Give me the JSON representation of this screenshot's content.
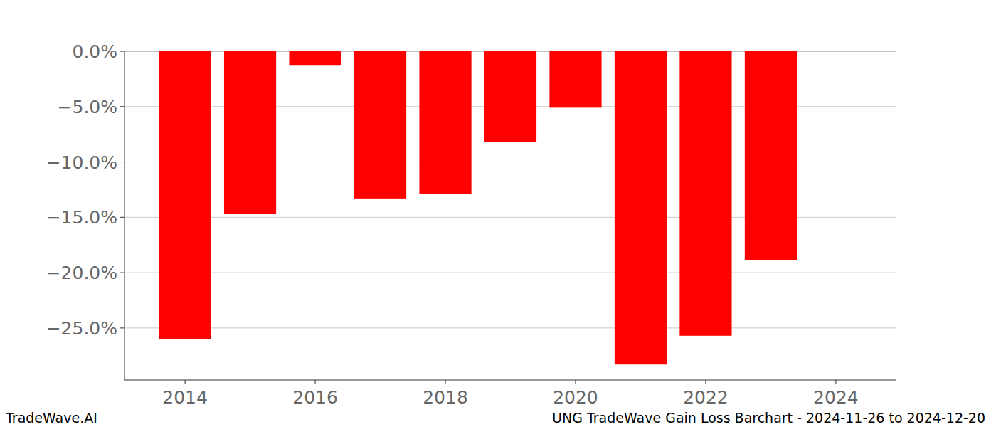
{
  "chart_data": {
    "type": "bar",
    "title": "UNG TradeWave Gain Loss Barchart - 2024-11-26 to 2024-12-20",
    "annotations": [
      "TradeWave.AI"
    ],
    "x": [
      2014,
      2015,
      2016,
      2017,
      2018,
      2019,
      2020,
      2021,
      2022,
      2023
    ],
    "values": [
      -26.0,
      -14.7,
      -1.3,
      -13.3,
      -12.9,
      -8.2,
      -5.1,
      -28.3,
      -25.7,
      -18.9
    ],
    "color": "#ff0000",
    "xlim": [
      2013.07,
      2024.93
    ],
    "xticks": [
      2014,
      2016,
      2018,
      2020,
      2022,
      2024
    ],
    "ylim": [
      -29.7,
      0
    ],
    "yticks": [
      {
        "value": -25,
        "label": "−25.0%"
      },
      {
        "value": -20,
        "label": "−20.0%"
      },
      {
        "value": -15,
        "label": "−15.0%"
      },
      {
        "value": -10,
        "label": "−10.0%"
      },
      {
        "value": -5,
        "label": "−5.0%"
      },
      {
        "value": 0,
        "label": "0.0%"
      }
    ],
    "grid": true
  }
}
